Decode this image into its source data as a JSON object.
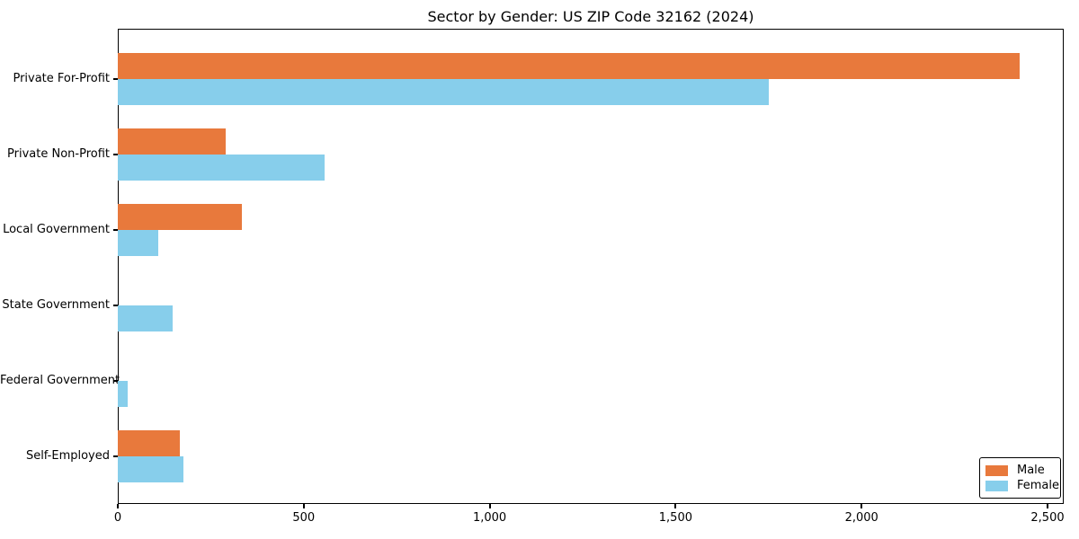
{
  "chart_data": {
    "type": "bar",
    "orientation": "horizontal",
    "title": "Sector by Gender: US ZIP Code 32162 (2024)",
    "categories": [
      "Private For-Profit",
      "Private Non-Profit",
      "Local Government",
      "State Government",
      "Federal Government",
      "Self-Employed"
    ],
    "series": [
      {
        "name": "Male",
        "color": "#e8793c",
        "values": [
          2425,
          290,
          334,
          0,
          0,
          167
        ]
      },
      {
        "name": "Female",
        "color": "#87ceeb",
        "values": [
          1750,
          556,
          110,
          148,
          27,
          177
        ]
      }
    ],
    "xlabel": "",
    "ylabel": "",
    "xlim": [
      0,
      2543
    ],
    "x_ticks": [
      0,
      500,
      1000,
      1500,
      2000,
      2500
    ],
    "x_tick_labels": [
      "0",
      "500",
      "1,000",
      "1,500",
      "2,000",
      "2,500"
    ],
    "grid": false,
    "legend": {
      "position": "lower right",
      "entries": [
        "Male",
        "Female"
      ]
    }
  },
  "colors": {
    "background": "#ffffff",
    "axis": "#000000",
    "text": "#000000",
    "male": "#e8793c",
    "female": "#87ceeb"
  }
}
